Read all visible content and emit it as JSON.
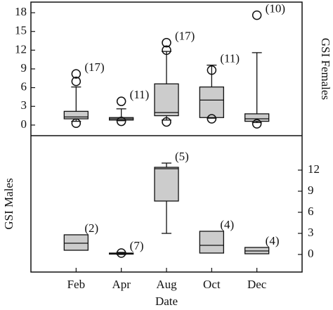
{
  "chart_data": [
    {
      "type": "box",
      "y_label": "GSI Females",
      "ylim": [
        -1.7,
        19.7
      ],
      "yticks": [
        0,
        3,
        6,
        9,
        12,
        15,
        18
      ],
      "color": "#cccccc",
      "boxes": [
        {
          "whislo": 0.6,
          "q1": 1.0,
          "med": 1.3,
          "q3": 2.2,
          "whishi": 6.1,
          "fliers": [
            0.3,
            7.0,
            8.2
          ],
          "label": "(17)"
        },
        {
          "whislo": 0.7,
          "q1": 0.8,
          "med": 1.0,
          "q3": 1.2,
          "whishi": 2.6,
          "fliers": [
            0.6,
            3.8
          ],
          "label": "(11)"
        },
        {
          "whislo": 0.8,
          "q1": 1.5,
          "med": 2.0,
          "q3": 6.6,
          "whishi": 11.8,
          "fliers": [
            0.5,
            12.0,
            13.2
          ],
          "label": "(17)"
        },
        {
          "whislo": 1.1,
          "q1": 1.2,
          "med": 4.0,
          "q3": 6.1,
          "whishi": 9.6,
          "fliers": [
            1.0,
            8.8
          ],
          "label": "(11)"
        },
        {
          "whislo": 0.4,
          "q1": 0.6,
          "med": 1.0,
          "q3": 1.8,
          "whishi": 11.6,
          "fliers": [
            0.2,
            17.6
          ],
          "label": "(10)"
        }
      ]
    },
    {
      "type": "box",
      "y_label": "GSI Males",
      "x_label": "Date",
      "ylim": [
        -2.5,
        16.9
      ],
      "yticks": [
        0,
        3,
        6,
        9,
        12
      ],
      "color": "#cccccc",
      "categories": [
        "Feb",
        "Apr",
        "Aug",
        "Oct",
        "Dec"
      ],
      "boxes": [
        {
          "q1": 0.6,
          "med": 1.6,
          "q3": 2.8,
          "label": "(2)"
        },
        {
          "whislo": 0.0,
          "q1": 0.05,
          "med": 0.1,
          "q3": 0.2,
          "whishi": 0.3,
          "fliers": [
            0.2
          ],
          "label": "(7)"
        },
        {
          "whislo": 3.0,
          "q1": 7.6,
          "med": 12.2,
          "q3": 12.4,
          "whishi": 13.0,
          "label": "(5)"
        },
        {
          "q1": 0.2,
          "med": 1.3,
          "q3": 3.3,
          "label": "(4)"
        },
        {
          "q1": 0.1,
          "med": 0.5,
          "q3": 1.0,
          "label": "(4)"
        }
      ]
    }
  ]
}
